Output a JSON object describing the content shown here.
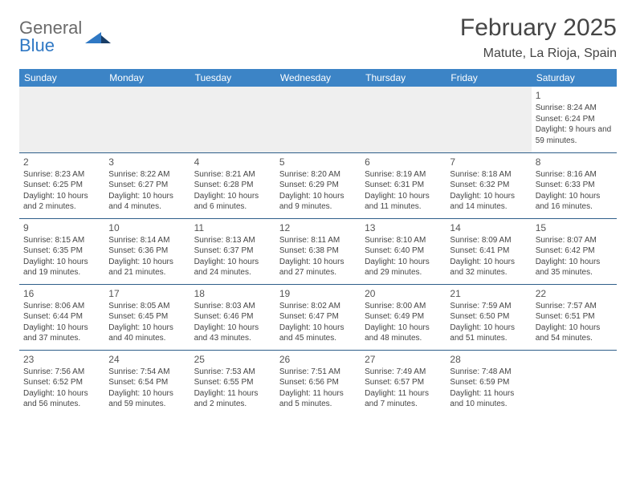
{
  "brand": {
    "part1": "General",
    "part2": "Blue"
  },
  "title": "February 2025",
  "location": "Matute, La Rioja, Spain",
  "header_bg": "#3c84c6",
  "rule_color": "#2f5f8a",
  "weekdays": [
    "Sunday",
    "Monday",
    "Tuesday",
    "Wednesday",
    "Thursday",
    "Friday",
    "Saturday"
  ],
  "weeks": [
    [
      null,
      null,
      null,
      null,
      null,
      null,
      {
        "d": "1",
        "sr": "Sunrise: 8:24 AM",
        "ss": "Sunset: 6:24 PM",
        "dl": "Daylight: 9 hours and 59 minutes."
      }
    ],
    [
      {
        "d": "2",
        "sr": "Sunrise: 8:23 AM",
        "ss": "Sunset: 6:25 PM",
        "dl": "Daylight: 10 hours and 2 minutes."
      },
      {
        "d": "3",
        "sr": "Sunrise: 8:22 AM",
        "ss": "Sunset: 6:27 PM",
        "dl": "Daylight: 10 hours and 4 minutes."
      },
      {
        "d": "4",
        "sr": "Sunrise: 8:21 AM",
        "ss": "Sunset: 6:28 PM",
        "dl": "Daylight: 10 hours and 6 minutes."
      },
      {
        "d": "5",
        "sr": "Sunrise: 8:20 AM",
        "ss": "Sunset: 6:29 PM",
        "dl": "Daylight: 10 hours and 9 minutes."
      },
      {
        "d": "6",
        "sr": "Sunrise: 8:19 AM",
        "ss": "Sunset: 6:31 PM",
        "dl": "Daylight: 10 hours and 11 minutes."
      },
      {
        "d": "7",
        "sr": "Sunrise: 8:18 AM",
        "ss": "Sunset: 6:32 PM",
        "dl": "Daylight: 10 hours and 14 minutes."
      },
      {
        "d": "8",
        "sr": "Sunrise: 8:16 AM",
        "ss": "Sunset: 6:33 PM",
        "dl": "Daylight: 10 hours and 16 minutes."
      }
    ],
    [
      {
        "d": "9",
        "sr": "Sunrise: 8:15 AM",
        "ss": "Sunset: 6:35 PM",
        "dl": "Daylight: 10 hours and 19 minutes."
      },
      {
        "d": "10",
        "sr": "Sunrise: 8:14 AM",
        "ss": "Sunset: 6:36 PM",
        "dl": "Daylight: 10 hours and 21 minutes."
      },
      {
        "d": "11",
        "sr": "Sunrise: 8:13 AM",
        "ss": "Sunset: 6:37 PM",
        "dl": "Daylight: 10 hours and 24 minutes."
      },
      {
        "d": "12",
        "sr": "Sunrise: 8:11 AM",
        "ss": "Sunset: 6:38 PM",
        "dl": "Daylight: 10 hours and 27 minutes."
      },
      {
        "d": "13",
        "sr": "Sunrise: 8:10 AM",
        "ss": "Sunset: 6:40 PM",
        "dl": "Daylight: 10 hours and 29 minutes."
      },
      {
        "d": "14",
        "sr": "Sunrise: 8:09 AM",
        "ss": "Sunset: 6:41 PM",
        "dl": "Daylight: 10 hours and 32 minutes."
      },
      {
        "d": "15",
        "sr": "Sunrise: 8:07 AM",
        "ss": "Sunset: 6:42 PM",
        "dl": "Daylight: 10 hours and 35 minutes."
      }
    ],
    [
      {
        "d": "16",
        "sr": "Sunrise: 8:06 AM",
        "ss": "Sunset: 6:44 PM",
        "dl": "Daylight: 10 hours and 37 minutes."
      },
      {
        "d": "17",
        "sr": "Sunrise: 8:05 AM",
        "ss": "Sunset: 6:45 PM",
        "dl": "Daylight: 10 hours and 40 minutes."
      },
      {
        "d": "18",
        "sr": "Sunrise: 8:03 AM",
        "ss": "Sunset: 6:46 PM",
        "dl": "Daylight: 10 hours and 43 minutes."
      },
      {
        "d": "19",
        "sr": "Sunrise: 8:02 AM",
        "ss": "Sunset: 6:47 PM",
        "dl": "Daylight: 10 hours and 45 minutes."
      },
      {
        "d": "20",
        "sr": "Sunrise: 8:00 AM",
        "ss": "Sunset: 6:49 PM",
        "dl": "Daylight: 10 hours and 48 minutes."
      },
      {
        "d": "21",
        "sr": "Sunrise: 7:59 AM",
        "ss": "Sunset: 6:50 PM",
        "dl": "Daylight: 10 hours and 51 minutes."
      },
      {
        "d": "22",
        "sr": "Sunrise: 7:57 AM",
        "ss": "Sunset: 6:51 PM",
        "dl": "Daylight: 10 hours and 54 minutes."
      }
    ],
    [
      {
        "d": "23",
        "sr": "Sunrise: 7:56 AM",
        "ss": "Sunset: 6:52 PM",
        "dl": "Daylight: 10 hours and 56 minutes."
      },
      {
        "d": "24",
        "sr": "Sunrise: 7:54 AM",
        "ss": "Sunset: 6:54 PM",
        "dl": "Daylight: 10 hours and 59 minutes."
      },
      {
        "d": "25",
        "sr": "Sunrise: 7:53 AM",
        "ss": "Sunset: 6:55 PM",
        "dl": "Daylight: 11 hours and 2 minutes."
      },
      {
        "d": "26",
        "sr": "Sunrise: 7:51 AM",
        "ss": "Sunset: 6:56 PM",
        "dl": "Daylight: 11 hours and 5 minutes."
      },
      {
        "d": "27",
        "sr": "Sunrise: 7:49 AM",
        "ss": "Sunset: 6:57 PM",
        "dl": "Daylight: 11 hours and 7 minutes."
      },
      {
        "d": "28",
        "sr": "Sunrise: 7:48 AM",
        "ss": "Sunset: 6:59 PM",
        "dl": "Daylight: 11 hours and 10 minutes."
      },
      null
    ]
  ]
}
